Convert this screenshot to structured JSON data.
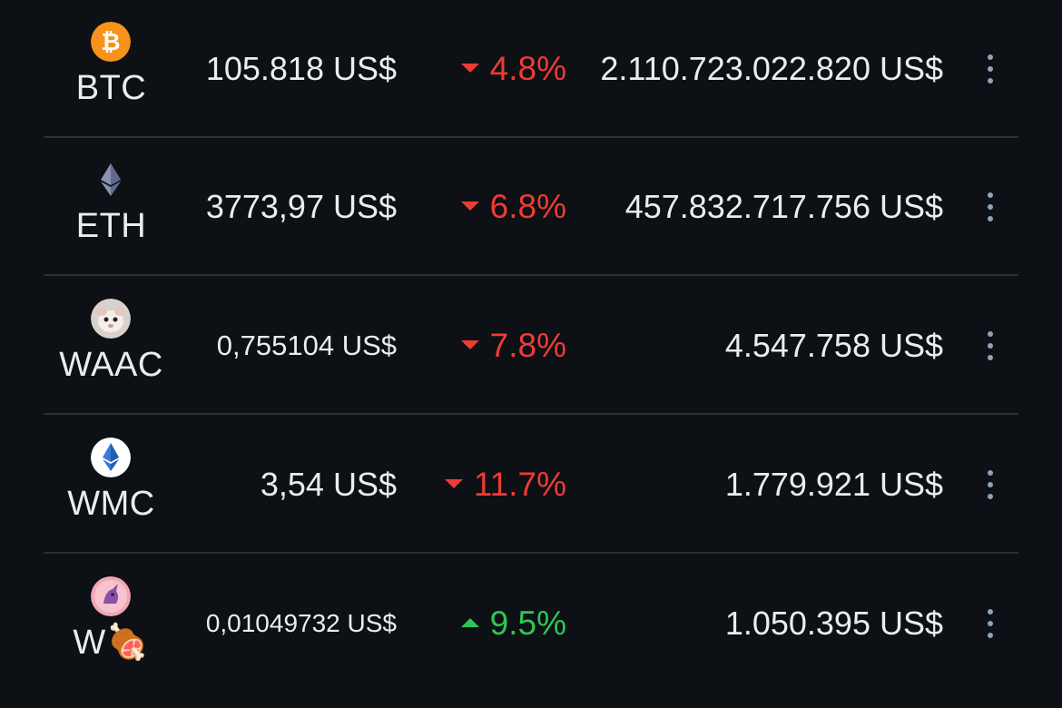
{
  "rows": [
    {
      "symbol": "BTC",
      "icon": "bitcoin-icon",
      "price": "105.818 US$",
      "change": "4.8%",
      "direction": "down",
      "market_cap": "2.110.723.022.820 US$"
    },
    {
      "symbol": "ETH",
      "icon": "ethereum-icon",
      "price": "3773,97 US$",
      "change": "6.8%",
      "direction": "down",
      "market_cap": "457.832.717.756 US$"
    },
    {
      "symbol": "WAAC",
      "icon": "waac-avatar-icon",
      "price": "0,755104 US$",
      "change": "7.8%",
      "direction": "down",
      "market_cap": "4.547.758 US$"
    },
    {
      "symbol": "WMC",
      "icon": "wmc-ethereum-icon",
      "price": "3,54 US$",
      "change": "11.7%",
      "direction": "down",
      "market_cap": "1.779.921 US$"
    },
    {
      "symbol": "W🍖",
      "icon": "unicorn-meat-icon",
      "price": "0,01049732 US$",
      "change": "9.5%",
      "direction": "up",
      "market_cap": "1.050.395 US$"
    }
  ],
  "colors": {
    "background": "#0d1014",
    "text": "#e9edf2",
    "negative": "#ef3b35",
    "positive": "#2dc653",
    "divider": "#2a3038",
    "menu_dots": "#8fa3bd",
    "bitcoin": "#f7931a",
    "ethereum": "#8a92b2"
  }
}
